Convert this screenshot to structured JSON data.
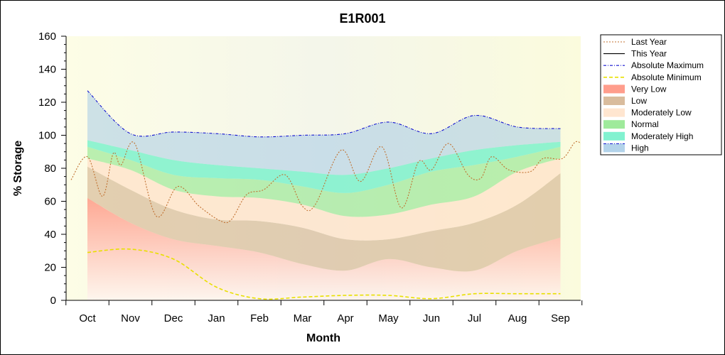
{
  "chart_data": {
    "type": "area",
    "title": "E1R001",
    "xlabel": "Month",
    "ylabel": "% Storage",
    "ylim": [
      0,
      160
    ],
    "yticks": [
      0,
      20,
      40,
      60,
      80,
      100,
      120,
      140,
      160
    ],
    "categories": [
      "Oct",
      "Nov",
      "Dec",
      "Jan",
      "Feb",
      "Mar",
      "Apr",
      "May",
      "Jun",
      "Jul",
      "Aug",
      "Sep"
    ],
    "legend_position": "right",
    "legend": [
      {
        "label": "Last Year",
        "kind": "line",
        "color": "#c07030",
        "dash": "2,2"
      },
      {
        "label": "This Year",
        "kind": "line",
        "color": "#000000",
        "dash": ""
      },
      {
        "label": "Absolute Maximum",
        "kind": "line",
        "color": "#1010d0",
        "dash": "4,2,1,2"
      },
      {
        "label": "Absolute Minimum",
        "kind": "line",
        "color": "#e8e000",
        "dash": "5,3"
      },
      {
        "label": "Very Low",
        "kind": "area",
        "color": "#ff8c78"
      },
      {
        "label": "Low",
        "kind": "area",
        "color": "#d2b08c"
      },
      {
        "label": "Moderately Low",
        "kind": "area",
        "color": "#ffe2c8"
      },
      {
        "label": "Normal",
        "kind": "area",
        "color": "#8ee68a"
      },
      {
        "label": "Moderately High",
        "kind": "area",
        "color": "#6cf0c8"
      },
      {
        "label": "High",
        "kind": "area",
        "color": "#a6cbe6"
      }
    ],
    "band_x": [
      0,
      1,
      2,
      3,
      4,
      5,
      6,
      7,
      8,
      9,
      10,
      11
    ],
    "bands": [
      {
        "name": "Very Low",
        "lower": [
          0,
          0,
          0,
          0,
          0,
          0,
          0,
          0,
          0,
          0,
          0,
          0
        ],
        "upper": [
          62,
          47,
          37,
          33,
          29,
          22,
          18,
          25,
          20,
          18,
          30,
          38
        ]
      },
      {
        "name": "Low",
        "lower": [
          62,
          47,
          37,
          33,
          29,
          22,
          18,
          25,
          20,
          18,
          30,
          38
        ],
        "upper": [
          81,
          67,
          55,
          49,
          48,
          44,
          37,
          37,
          42,
          47,
          58,
          77
        ]
      },
      {
        "name": "Moderately Low",
        "lower": [
          81,
          67,
          55,
          49,
          48,
          44,
          37,
          37,
          42,
          47,
          58,
          77
        ],
        "upper": [
          86,
          79,
          67,
          63,
          62,
          58,
          51,
          52,
          58,
          63,
          78,
          86
        ]
      },
      {
        "name": "Normal",
        "lower": [
          86,
          79,
          67,
          63,
          62,
          58,
          51,
          52,
          58,
          63,
          78,
          86
        ],
        "upper": [
          93,
          85,
          76,
          74,
          73,
          69,
          65,
          70,
          78,
          82,
          87,
          93
        ]
      },
      {
        "name": "Moderately High",
        "lower": [
          93,
          85,
          76,
          74,
          73,
          69,
          65,
          70,
          78,
          82,
          87,
          93
        ],
        "upper": [
          97,
          91,
          85,
          82,
          80,
          78,
          76,
          80,
          86,
          91,
          94,
          96
        ]
      },
      {
        "name": "High",
        "lower": [
          97,
          91,
          85,
          82,
          80,
          78,
          76,
          80,
          86,
          91,
          94,
          96
        ],
        "upper": [
          127,
          101,
          102,
          101,
          99,
          100,
          101,
          108,
          101,
          112,
          105,
          104
        ]
      }
    ],
    "series": [
      {
        "name": "Absolute Maximum",
        "x": [
          0,
          1,
          2,
          3,
          4,
          5,
          6,
          7,
          8,
          9,
          10,
          11
        ],
        "values": [
          127,
          101,
          102,
          101,
          99,
          100,
          101,
          108,
          101,
          112,
          105,
          104
        ]
      },
      {
        "name": "Absolute Minimum",
        "x": [
          0,
          1,
          2,
          3,
          4,
          5,
          6,
          7,
          8,
          9,
          10,
          11
        ],
        "values": [
          29,
          31,
          25,
          8,
          1,
          2,
          3,
          3,
          1,
          4,
          4,
          4
        ]
      },
      {
        "name": "Last Year",
        "x": [
          -0.38,
          0,
          0.35,
          0.6,
          0.78,
          1.1,
          1.6,
          2.1,
          2.6,
          3.1,
          3.35,
          3.7,
          4.1,
          4.6,
          5.0,
          5.3,
          5.9,
          6.35,
          6.85,
          7.3,
          7.7,
          8.0,
          8.4,
          8.85,
          9.15,
          9.4,
          9.8,
          10.3,
          10.6,
          11.05,
          11.35,
          11.55
        ],
        "values": [
          73,
          87,
          63,
          89,
          82,
          95,
          51,
          69,
          57,
          48,
          49,
          64,
          67,
          76,
          57,
          58,
          91,
          72,
          93,
          56,
          84,
          79,
          95,
          76,
          74,
          87,
          79,
          78,
          86,
          86,
          96,
          93
        ]
      },
      {
        "name": "This Year",
        "x": [],
        "values": []
      }
    ]
  }
}
